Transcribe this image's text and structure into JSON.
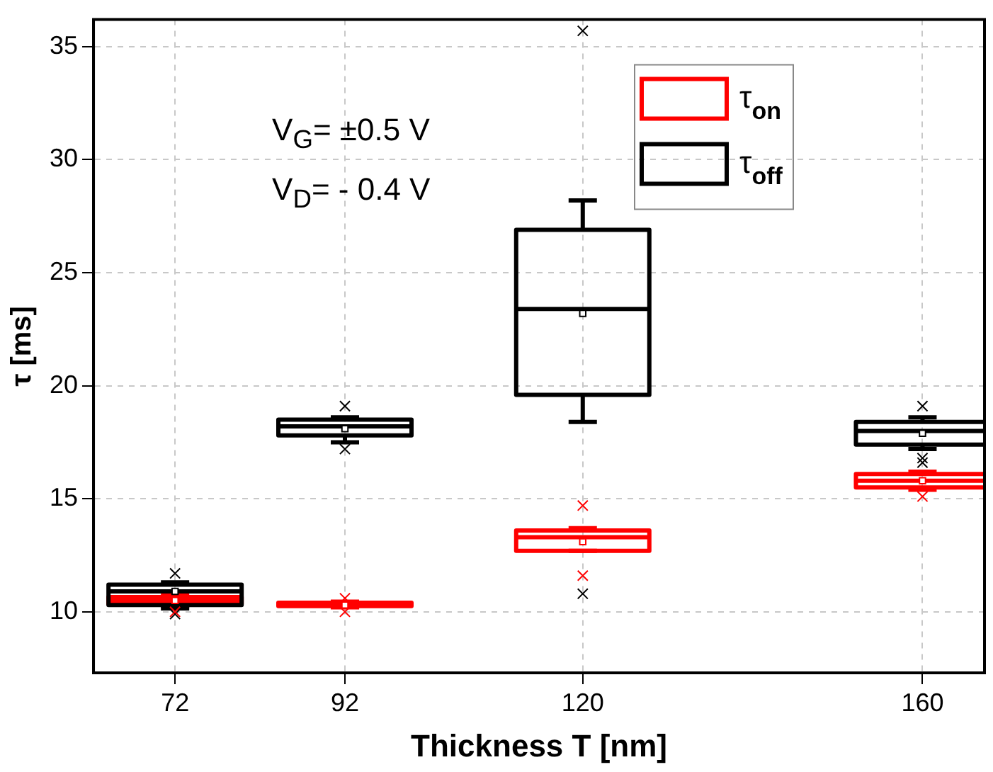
{
  "chart_data": {
    "type": "box",
    "xlabel": "Thickness T [nm]",
    "ylabel": "τ [ms]",
    "x": [
      72,
      92,
      120,
      160
    ],
    "xlim": [
      62.4,
      167.3
    ],
    "xticks": [
      72,
      92,
      120,
      160
    ],
    "ylim": [
      7.3,
      36.2
    ],
    "yticks": [
      10,
      15,
      20,
      25,
      30,
      35
    ],
    "grid": true,
    "legend": "top right",
    "annotations": [
      "V$_{G}$= ±0.5 V",
      "V$_{D}$= - 0.4 V"
    ],
    "series": [
      {
        "name": "τ$_{on}$",
        "color": "#ff0000",
        "boxes": [
          {
            "low": 10.25,
            "q1": 10.35,
            "median": 10.5,
            "q3": 10.65,
            "high": 10.75,
            "mean": 10.5,
            "outliers": [
              10.0
            ]
          },
          {
            "low": 10.2,
            "q1": 10.25,
            "median": 10.3,
            "q3": 10.4,
            "high": 10.45,
            "mean": 10.3,
            "outliers": [
              10.6,
              10.0
            ]
          },
          {
            "low": 12.7,
            "q1": 12.7,
            "median": 13.3,
            "q3": 13.6,
            "high": 13.7,
            "mean": 13.1,
            "outliers": [
              14.7,
              11.6
            ]
          },
          {
            "low": 15.4,
            "q1": 15.5,
            "median": 15.8,
            "q3": 16.1,
            "high": 16.2,
            "mean": 15.8,
            "outliers": [
              15.1
            ]
          }
        ]
      },
      {
        "name": "τ$_{off}$",
        "color": "#000000",
        "boxes": [
          {
            "low": 10.15,
            "q1": 10.3,
            "median": 10.9,
            "q3": 11.2,
            "high": 11.3,
            "mean": 10.9,
            "outliers": [
              11.7,
              9.9
            ]
          },
          {
            "low": 17.5,
            "q1": 17.8,
            "median": 18.2,
            "q3": 18.5,
            "high": 18.6,
            "mean": 18.1,
            "outliers": [
              19.1,
              17.2
            ]
          },
          {
            "low": 18.4,
            "q1": 19.6,
            "median": 23.4,
            "q3": 26.9,
            "high": 28.2,
            "mean": 23.2,
            "outliers": [
              35.7,
              10.8
            ]
          },
          {
            "low": 17.2,
            "q1": 17.4,
            "median": 18.0,
            "q3": 18.4,
            "high": 18.6,
            "mean": 17.9,
            "outliers": [
              19.1,
              16.8,
              16.6
            ]
          }
        ]
      }
    ]
  }
}
